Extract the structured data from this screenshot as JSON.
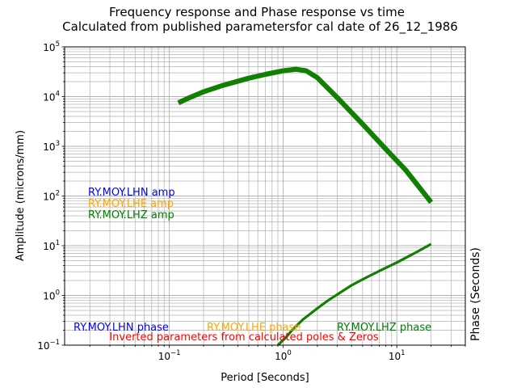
{
  "chart_data": {
    "type": "line",
    "title_line1": "Frequency response and Phase response vs time",
    "title_line2": "Calculated from published parametersfor cal date of 26_12_1986",
    "xlabel": "Period [Seconds]",
    "ylabel": "Amplitude (microns/mm)",
    "ylabel_right": "Phase (Seconds)",
    "xscale": "log",
    "yscale": "log",
    "xlim": [
      0.012,
      40
    ],
    "ylim": [
      0.1,
      100000
    ],
    "grid": true,
    "x_tick_labels": [
      {
        "value": 0.1,
        "base": "10",
        "exp": "−1"
      },
      {
        "value": 1,
        "base": "10",
        "exp": "0"
      },
      {
        "value": 10,
        "base": "10",
        "exp": "1"
      }
    ],
    "y_tick_labels": [
      {
        "value": 0.1,
        "base": "10",
        "exp": "−1"
      },
      {
        "value": 1,
        "base": "10",
        "exp": "0"
      },
      {
        "value": 10,
        "base": "10",
        "exp": "1"
      },
      {
        "value": 100,
        "base": "10",
        "exp": "2"
      },
      {
        "value": 1000,
        "base": "10",
        "exp": "3"
      },
      {
        "value": 10000,
        "base": "10",
        "exp": "4"
      },
      {
        "value": 100000,
        "base": "10",
        "exp": "5"
      }
    ],
    "amp_x": [
      0.12,
      0.15,
      0.2,
      0.3,
      0.5,
      0.7,
      1.0,
      1.3,
      1.6,
      2.0,
      3.0,
      5.0,
      8.0,
      12.0,
      20.0
    ],
    "phase_x": [
      0.9,
      1.05,
      1.2,
      1.5,
      2.0,
      2.5,
      3.0,
      4.0,
      5.0,
      7.0,
      10.0,
      15.0,
      20.0
    ],
    "series": [
      {
        "name": "RY.MOY.LHN amp",
        "color": "#0000ff",
        "width": 6,
        "x": [
          0.12,
          0.15,
          0.2,
          0.3,
          0.5,
          0.7,
          1.0,
          1.3,
          1.6,
          2.0,
          3.0,
          5.0,
          8.0,
          12.0,
          20.0
        ],
        "y": [
          7500,
          9500,
          12500,
          17000,
          23500,
          28000,
          33000,
          35500,
          33000,
          24000,
          9500,
          2800,
          880,
          330,
          75
        ]
      },
      {
        "name": "RY.MOY.LHE amp",
        "color": "#ffa500",
        "width": 6,
        "x": [
          0.12,
          0.15,
          0.2,
          0.3,
          0.5,
          0.7,
          1.0,
          1.3,
          1.6,
          2.0,
          3.0,
          5.0,
          8.0,
          12.0,
          20.0
        ],
        "y": [
          7500,
          9500,
          12500,
          17000,
          23500,
          28000,
          33000,
          35500,
          33000,
          24000,
          9500,
          2800,
          880,
          330,
          75
        ]
      },
      {
        "name": "RY.MOY.LHZ amp",
        "color": "#008000",
        "width": 6,
        "x": [
          0.12,
          0.15,
          0.2,
          0.3,
          0.5,
          0.7,
          1.0,
          1.3,
          1.6,
          2.0,
          3.0,
          5.0,
          8.0,
          12.0,
          20.0
        ],
        "y": [
          7500,
          9500,
          12500,
          17000,
          23500,
          28000,
          33000,
          35500,
          33000,
          24000,
          9500,
          2800,
          880,
          330,
          75
        ]
      },
      {
        "name": "RY.MOY.LHN phase",
        "color": "#0000ff",
        "width": 3,
        "x": [
          0.9,
          1.05,
          1.2,
          1.5,
          2.0,
          2.5,
          3.0,
          4.0,
          5.0,
          7.0,
          10.0,
          15.0,
          20.0
        ],
        "y": [
          0.1,
          0.14,
          0.2,
          0.33,
          0.55,
          0.8,
          1.05,
          1.6,
          2.1,
          3.1,
          4.6,
          7.5,
          10.8
        ]
      },
      {
        "name": "RY.MOY.LHE phase",
        "color": "#ffa500",
        "width": 3,
        "x": [
          0.9,
          1.05,
          1.2,
          1.5,
          2.0,
          2.5,
          3.0,
          4.0,
          5.0,
          7.0,
          10.0,
          15.0,
          20.0
        ],
        "y": [
          0.1,
          0.14,
          0.2,
          0.33,
          0.55,
          0.8,
          1.05,
          1.6,
          2.1,
          3.1,
          4.6,
          7.5,
          10.8
        ]
      },
      {
        "name": "RY.MOY.LHZ phase",
        "color": "#008000",
        "width": 3,
        "x": [
          0.9,
          1.05,
          1.2,
          1.5,
          2.0,
          2.5,
          3.0,
          4.0,
          5.0,
          7.0,
          10.0,
          15.0,
          20.0
        ],
        "y": [
          0.1,
          0.14,
          0.2,
          0.33,
          0.55,
          0.8,
          1.05,
          1.6,
          2.1,
          3.1,
          4.6,
          7.5,
          10.8
        ]
      }
    ],
    "legend_amp": [
      {
        "label": "RY.MOY.LHN amp",
        "color": "#0000ff"
      },
      {
        "label": "RY.MOY.LHE amp",
        "color": "#ffa500"
      },
      {
        "label": "RY.MOY.LHZ amp",
        "color": "#008000"
      }
    ],
    "legend_phase": [
      {
        "label": "RY.MOY.LHN phase",
        "color": "#0000ff"
      },
      {
        "label": "RY.MOY.LHE phase",
        "color": "#ffa500"
      },
      {
        "label": "RY.MOY.LHZ phase",
        "color": "#008000"
      }
    ],
    "note": {
      "text": "Inverted parameters from calculated poles & Zeros",
      "color": "#ff0000"
    }
  }
}
